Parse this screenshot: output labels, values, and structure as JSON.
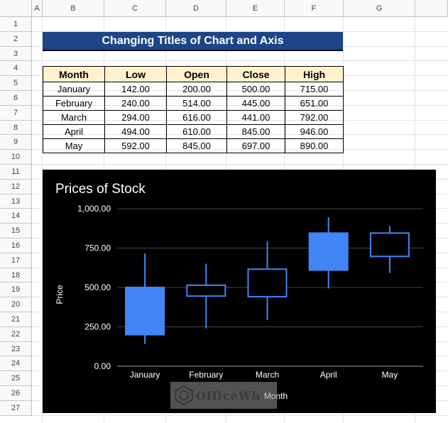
{
  "sheet": {
    "columns": [
      "A",
      "B",
      "C",
      "D",
      "E",
      "F",
      "G"
    ],
    "rows": [
      "1",
      "2",
      "3",
      "4",
      "5",
      "6",
      "7",
      "8",
      "9",
      "10",
      "11",
      "12",
      "13",
      "14",
      "15",
      "16",
      "17",
      "18",
      "19",
      "20",
      "21",
      "22",
      "23",
      "24",
      "25",
      "26",
      "27"
    ]
  },
  "banner": {
    "title": "Changing Titles of Chart and Axis"
  },
  "table": {
    "headers": [
      "Month",
      "Low",
      "Open",
      "Close",
      "High"
    ],
    "rows": [
      [
        "January",
        "142.00",
        "200.00",
        "500.00",
        "715.00"
      ],
      [
        "February",
        "240.00",
        "514.00",
        "445.00",
        "651.00"
      ],
      [
        "March",
        "294.00",
        "616.00",
        "441.00",
        "792.00"
      ],
      [
        "April",
        "494.00",
        "610.00",
        "845.00",
        "946.00"
      ],
      [
        "May",
        "592.00",
        "845.00",
        "697.00",
        "890.00"
      ]
    ]
  },
  "chart_data": {
    "type": "candlestick",
    "title": "Prices of Stock",
    "xlabel": "Month",
    "ylabel": "Price",
    "ylim": [
      0,
      1000
    ],
    "yticks": [
      "0.00",
      "250.00",
      "500.00",
      "750.00",
      "1,000.00"
    ],
    "categories": [
      "January",
      "February",
      "March",
      "April",
      "May"
    ],
    "low": [
      142,
      240,
      294,
      494,
      592
    ],
    "open": [
      200,
      514,
      616,
      610,
      845
    ],
    "close": [
      500,
      445,
      441,
      845,
      697
    ],
    "high": [
      715,
      651,
      792,
      946,
      890
    ],
    "colors": {
      "background": "#000000",
      "candle": "#4285f4",
      "grid": "#444444",
      "text": "#ffffff"
    }
  },
  "watermark": {
    "text": "OfficeWh"
  }
}
